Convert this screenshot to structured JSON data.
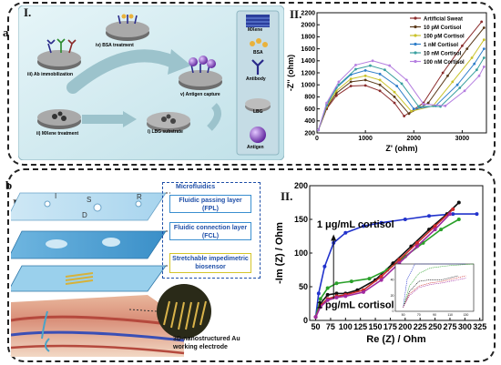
{
  "panel_a": {
    "letter": "a",
    "left_roman": "I.",
    "right_roman": "II.",
    "steps": {
      "s1": "i) LBG substrate",
      "s2": "ii) MXene treatment",
      "s3": "iii) Ab immobilization",
      "s4": "iv) BSA treatment",
      "s5": "v) Antigen capture"
    },
    "legend": [
      "MXene",
      "BSA",
      "Antibody",
      "LBG",
      "Antigen"
    ],
    "colors": {
      "bg": "#d9eef2",
      "legend_bg": "#c7dde6",
      "arrow": "#8ab4be"
    }
  },
  "panel_b": {
    "letter": "b",
    "left_roman": "I.",
    "right_roman": "II.",
    "layers_title": "Microfluidics",
    "layers": [
      "Fluidic passing layer (FPL)",
      "Fluidic connection layer (FCL)",
      "Stretchable impedimetric biosensor"
    ],
    "electrode_letters": [
      "I",
      "S",
      "R",
      "D"
    ],
    "electrode_caption": "3D-nanostructured Au working electrode"
  },
  "chart_data": [
    {
      "type": "line",
      "xlabel": "Z' (ohm)",
      "ylabel": "-Z'' (ohm)",
      "xlim": [
        0,
        3500
      ],
      "ylim": [
        200,
        2200
      ],
      "xticks": [
        0,
        1000,
        2000,
        3000
      ],
      "yticks": [
        200,
        400,
        600,
        800,
        1000,
        1200,
        1400,
        1600,
        1800,
        2000,
        2200
      ],
      "legend_position": "top-right",
      "series": [
        {
          "name": "Artificial Sweat",
          "color": "#8b2c2c",
          "x": [
            30,
            200,
            400,
            700,
            1000,
            1300,
            1600,
            1800,
            2200,
            2600,
            3000,
            3400
          ],
          "y": [
            250,
            600,
            820,
            980,
            990,
            900,
            700,
            480,
            700,
            1200,
            1650,
            2050
          ]
        },
        {
          "name": "10 pM Cortisol",
          "color": "#5b3a1a",
          "x": [
            30,
            200,
            400,
            700,
            1000,
            1300,
            1600,
            1900,
            2300,
            2700,
            3100,
            3450
          ],
          "y": [
            250,
            620,
            860,
            1050,
            1080,
            1000,
            800,
            520,
            700,
            1150,
            1600,
            1950
          ]
        },
        {
          "name": "100 pM Cortisol",
          "color": "#c9c22a",
          "x": [
            30,
            200,
            400,
            700,
            1000,
            1300,
            1600,
            1950,
            2400,
            2800,
            3200,
            3450
          ],
          "y": [
            250,
            640,
            900,
            1100,
            1150,
            1080,
            880,
            560,
            650,
            1050,
            1450,
            1750
          ]
        },
        {
          "name": "1 nM Cortisol",
          "color": "#2e7ec9",
          "x": [
            30,
            200,
            400,
            700,
            1000,
            1300,
            1650,
            2000,
            2450,
            2900,
            3250,
            3450
          ],
          "y": [
            250,
            660,
            950,
            1170,
            1240,
            1180,
            980,
            600,
            650,
            1000,
            1350,
            1600
          ]
        },
        {
          "name": "10 nM Cortisol",
          "color": "#3aa0a0",
          "x": [
            30,
            200,
            450,
            800,
            1100,
            1400,
            1750,
            2100,
            2550,
            2950,
            3300,
            3450
          ],
          "y": [
            250,
            680,
            1000,
            1260,
            1320,
            1250,
            1020,
            640,
            640,
            950,
            1250,
            1450
          ]
        },
        {
          "name": "100 nM Cortisol",
          "color": "#b57fe0",
          "x": [
            30,
            200,
            450,
            800,
            1150,
            1500,
            1850,
            2200,
            2650,
            3050,
            3350,
            3450
          ],
          "y": [
            250,
            700,
            1050,
            1330,
            1400,
            1320,
            1080,
            680,
            650,
            900,
            1150,
            1300
          ]
        }
      ]
    },
    {
      "type": "line",
      "xlabel": "Re (Z) / Ohm",
      "ylabel": "-Im (Z) / Ohm",
      "xlim": [
        40,
        330
      ],
      "ylim": [
        0,
        200
      ],
      "xticks": [
        50,
        75,
        100,
        125,
        150,
        175,
        200,
        225,
        250,
        275,
        300,
        325
      ],
      "yticks": [
        0,
        50,
        100,
        150,
        200
      ],
      "annotations": {
        "top": "1 μg/mL cortisol",
        "bottom": "1 pg/mL cortisol"
      },
      "series": [
        {
          "color": "#2233cc",
          "x": [
            50,
            55,
            65,
            80,
            100,
            130,
            160,
            200,
            240,
            280,
            320
          ],
          "y": [
            5,
            40,
            80,
            115,
            130,
            140,
            145,
            150,
            155,
            158,
            158
          ]
        },
        {
          "color": "#111111",
          "x": [
            50,
            58,
            70,
            85,
            100,
            120,
            150,
            180,
            210,
            240,
            270,
            290
          ],
          "y": [
            5,
            25,
            38,
            40,
            40,
            45,
            60,
            85,
            110,
            135,
            158,
            175
          ]
        },
        {
          "color": "#2aa02a",
          "x": [
            50,
            58,
            70,
            85,
            110,
            140,
            170,
            200,
            230,
            260,
            290
          ],
          "y": [
            5,
            32,
            48,
            55,
            58,
            62,
            75,
            95,
            115,
            135,
            150
          ]
        },
        {
          "color": "#cc2a2a",
          "x": [
            50,
            58,
            70,
            85,
            100,
            130,
            160,
            190,
            220,
            250,
            280
          ],
          "y": [
            5,
            22,
            32,
            36,
            38,
            45,
            65,
            90,
            115,
            140,
            165
          ]
        },
        {
          "color": "#a02aa0",
          "x": [
            50,
            58,
            70,
            85,
            100,
            130,
            160,
            190,
            220,
            250,
            275
          ],
          "y": [
            5,
            20,
            30,
            34,
            36,
            42,
            60,
            85,
            110,
            135,
            158
          ]
        }
      ],
      "inset": {
        "xlim": [
          40,
          140
        ],
        "ylim": [
          0,
          60
        ],
        "xticks": [
          50,
          70,
          90,
          110,
          130
        ],
        "yticks": [
          0,
          20,
          40,
          60
        ]
      }
    }
  ]
}
